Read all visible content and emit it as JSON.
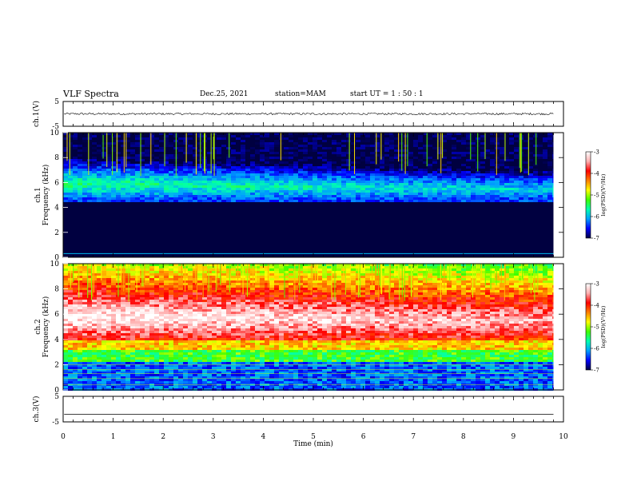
{
  "header": {
    "title": "VLF Spectra",
    "date": "Dec.25, 2021",
    "station": "station=MAM",
    "start_ut": "start  UT =   1 : 50 : 1"
  },
  "colors": {
    "colormap": [
      "#000040",
      "#0000ff",
      "#00a0ff",
      "#00ffb0",
      "#40ff00",
      "#ffff00",
      "#ff8000",
      "#ff0000",
      "#ffb0b0",
      "#ffffff"
    ]
  },
  "chart_data": [
    {
      "type": "line",
      "panel": "ch1-waveform",
      "ylabel": "ch.1(V)",
      "ylim": [
        -5,
        5
      ],
      "yticks": [
        "5",
        "-5"
      ],
      "xlim": [
        0,
        10
      ],
      "series": [
        {
          "values_description_level": 0.0,
          "amplitude_approx": 0.4
        }
      ]
    },
    {
      "type": "heatmap",
      "panel": "ch1-spectrogram",
      "ylabel": "ch.1\nFrequency (kHz)",
      "yticks": [
        "0",
        "2",
        "4",
        "6",
        "8",
        "10"
      ],
      "ylim": [
        0,
        10
      ],
      "xlim": [
        0,
        9.8
      ],
      "colorbar": {
        "label": "log(PSD)(V²/Hz)",
        "ticks": [
          "-3",
          "-4",
          "-5",
          "-6",
          "-7"
        ],
        "range": [
          -7,
          -3
        ]
      },
      "bands": [
        {
          "f_low": 0,
          "f_high": 4.4,
          "log_psd": -7.0
        },
        {
          "f_low": 4.4,
          "f_high": 5.0,
          "log_psd": -6.4
        },
        {
          "f_low": 5.0,
          "f_high": 6.6,
          "log_psd": -5.8
        },
        {
          "f_low": 6.6,
          "f_high": 7.6,
          "log_psd": -6.3
        },
        {
          "f_low": 7.6,
          "f_high": 10,
          "log_psd": -6.8
        }
      ]
    },
    {
      "type": "heatmap",
      "panel": "ch2-spectrogram",
      "ylabel": "ch.2\nFrequency (kHz)",
      "yticks": [
        "0",
        "2",
        "4",
        "6",
        "8",
        "10"
      ],
      "ylim": [
        0,
        10
      ],
      "xlim": [
        0,
        9.8
      ],
      "colorbar": {
        "label": "log(PSD)(V²/Hz)",
        "ticks": [
          "-3",
          "-4",
          "-5",
          "-6",
          "-7"
        ],
        "range": [
          -7,
          -3
        ]
      },
      "bands": [
        {
          "f_low": 0,
          "f_high": 2.2,
          "log_psd": -6.3
        },
        {
          "f_low": 2.2,
          "f_high": 3.2,
          "log_psd": -5.3
        },
        {
          "f_low": 3.2,
          "f_high": 4.2,
          "log_psd": -4.6
        },
        {
          "f_low": 4.2,
          "f_high": 5.0,
          "log_psd": -3.8
        },
        {
          "f_low": 5.0,
          "f_high": 7.0,
          "log_psd": -3.2
        },
        {
          "f_low": 7.0,
          "f_high": 8.2,
          "log_psd": -3.8
        },
        {
          "f_low": 8.2,
          "f_high": 10,
          "log_psd": -4.6
        }
      ]
    },
    {
      "type": "line",
      "panel": "ch3-waveform",
      "ylabel": "ch.3(V)",
      "ylim": [
        -5,
        5
      ],
      "yticks": [
        "5",
        "-5"
      ],
      "xlim": [
        0,
        10
      ],
      "series": [
        {
          "values_description_level": -2.0,
          "amplitude_approx": 0.0
        }
      ]
    }
  ],
  "xaxis": {
    "label": "Time (min)",
    "ticks": [
      "0",
      "1",
      "2",
      "3",
      "4",
      "5",
      "6",
      "7",
      "8",
      "9",
      "10"
    ]
  }
}
